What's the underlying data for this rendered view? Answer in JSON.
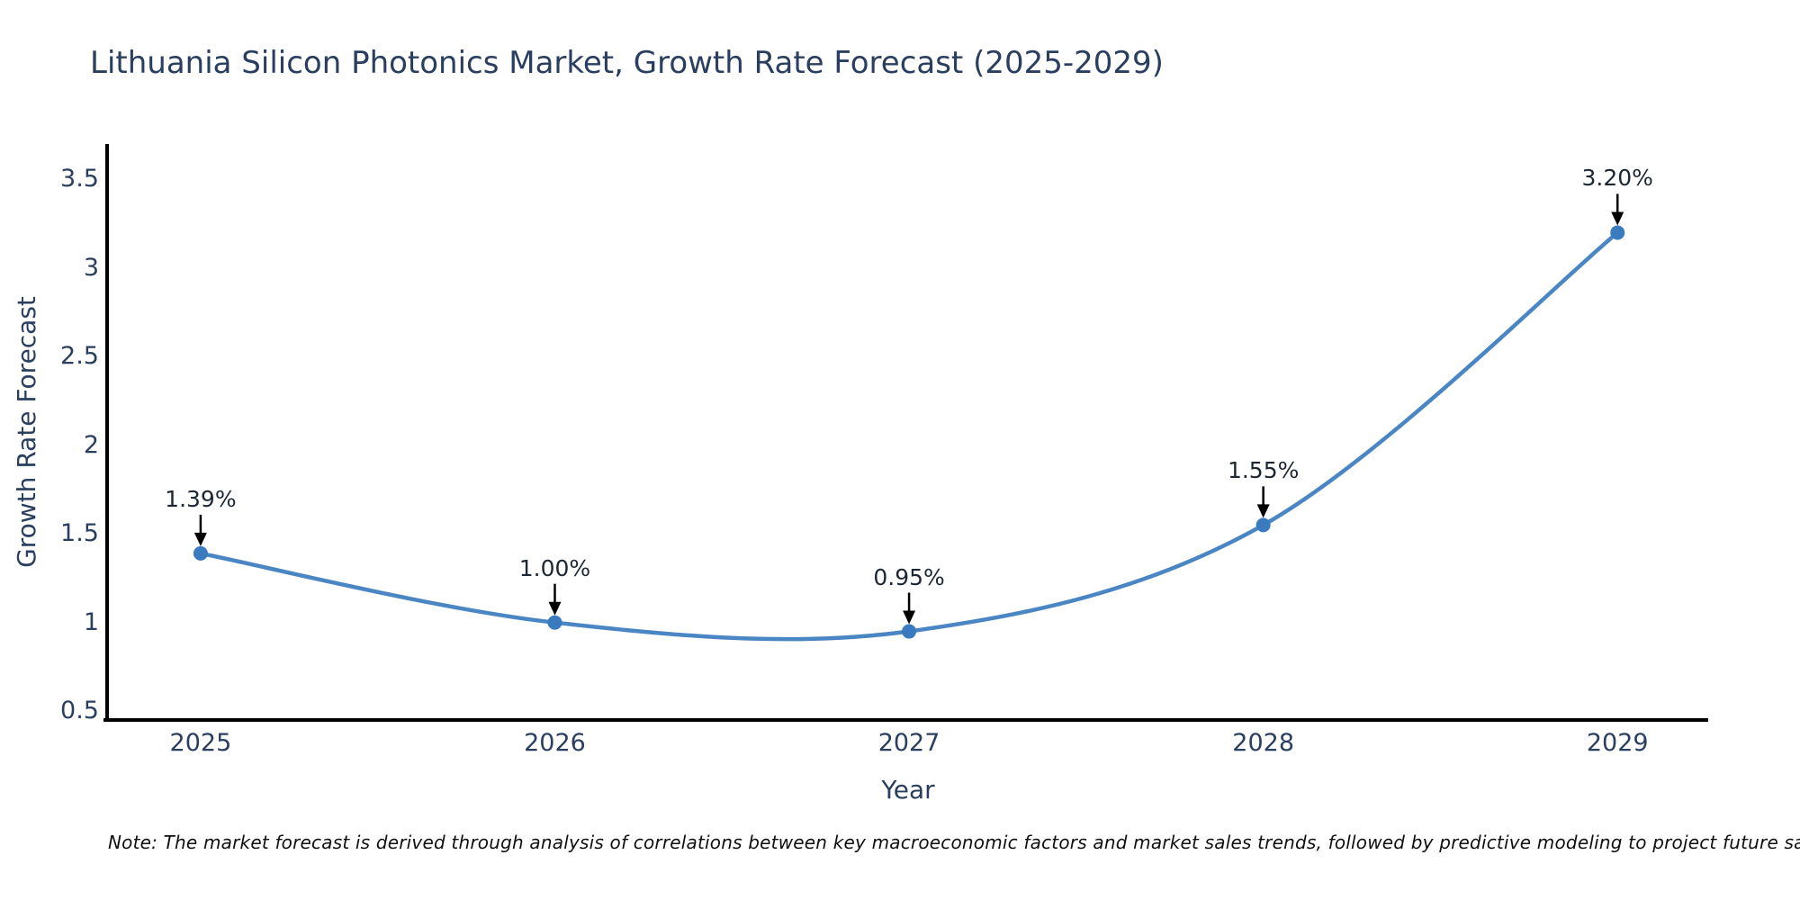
{
  "title": "Lithuania Silicon Photonics Market, Growth Rate Forecast (2025-2029)",
  "note": "Note: The market forecast is derived through analysis of correlations between key macroeconomic factors and market sales trends, followed by predictive modeling to project future sales",
  "chart_data": {
    "type": "line",
    "title": "Lithuania Silicon Photonics Market, Growth Rate Forecast (2025-2029)",
    "xlabel": "Year",
    "ylabel": "Growth Rate Forecast",
    "x": [
      2025,
      2026,
      2027,
      2028,
      2029
    ],
    "y": [
      1.39,
      1.0,
      0.95,
      1.55,
      3.2
    ],
    "point_labels": [
      "1.39%",
      "1.00%",
      "0.95%",
      "1.55%",
      "3.20%"
    ],
    "xtick_labels": [
      "2025",
      "2026",
      "2027",
      "2028",
      "2029"
    ],
    "yticks": [
      0.5,
      1,
      1.5,
      2,
      2.5,
      3,
      3.5
    ],
    "ytick_labels": [
      "0.5",
      "1",
      "1.5",
      "2",
      "2.5",
      "3",
      "3.5"
    ],
    "xlim": [
      2024.736,
      2029.256
    ],
    "ylim": [
      0.45,
      3.7
    ],
    "grid": false,
    "legend": false,
    "line_smoothing": "spline",
    "colors": {
      "line": "#4a86c3",
      "marker": "#3a7abf",
      "axis": "#000000",
      "text": "#2a3f5f",
      "annotation_text": "#1c2733",
      "annotation_arrow": "#000000",
      "note_text": "#101010",
      "background": "#ffffff"
    }
  }
}
